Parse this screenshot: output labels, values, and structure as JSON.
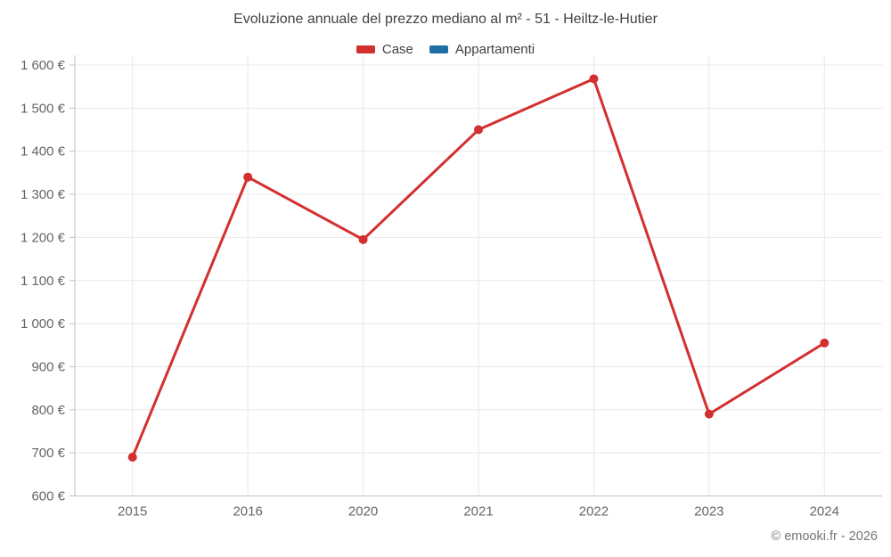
{
  "title": "Evoluzione annuale del prezzo mediano al m² - 51 - Heiltz-le-Hutier",
  "footer": {
    "credit": "© emooki.fr - 2026"
  },
  "chart_data": {
    "type": "line",
    "title": "Evoluzione annuale del prezzo mediano al m² - 51 - Heiltz-le-Hutier",
    "categories": [
      "2015",
      "2016",
      "2020",
      "2021",
      "2022",
      "2023",
      "2024"
    ],
    "series": [
      {
        "name": "Case",
        "color": "#d32f2f",
        "values": [
          690,
          1340,
          1195,
          1450,
          1568,
          790,
          955
        ]
      },
      {
        "name": "Appartamenti",
        "color": "#1c6ea4",
        "values": []
      }
    ],
    "xlabel": "",
    "ylabel": "",
    "ylim": [
      600,
      1600
    ],
    "ytick_step": 100,
    "ytick_suffix": " €",
    "thousands_separator": " ",
    "grid": true,
    "legend_position": "top",
    "colors": {
      "grid_line": "#e8e8e8",
      "axis_line": "#c2c2c2",
      "tick_label": "#666666",
      "title_text": "#424242",
      "footer_text": "#757575",
      "background": "#ffffff"
    }
  }
}
